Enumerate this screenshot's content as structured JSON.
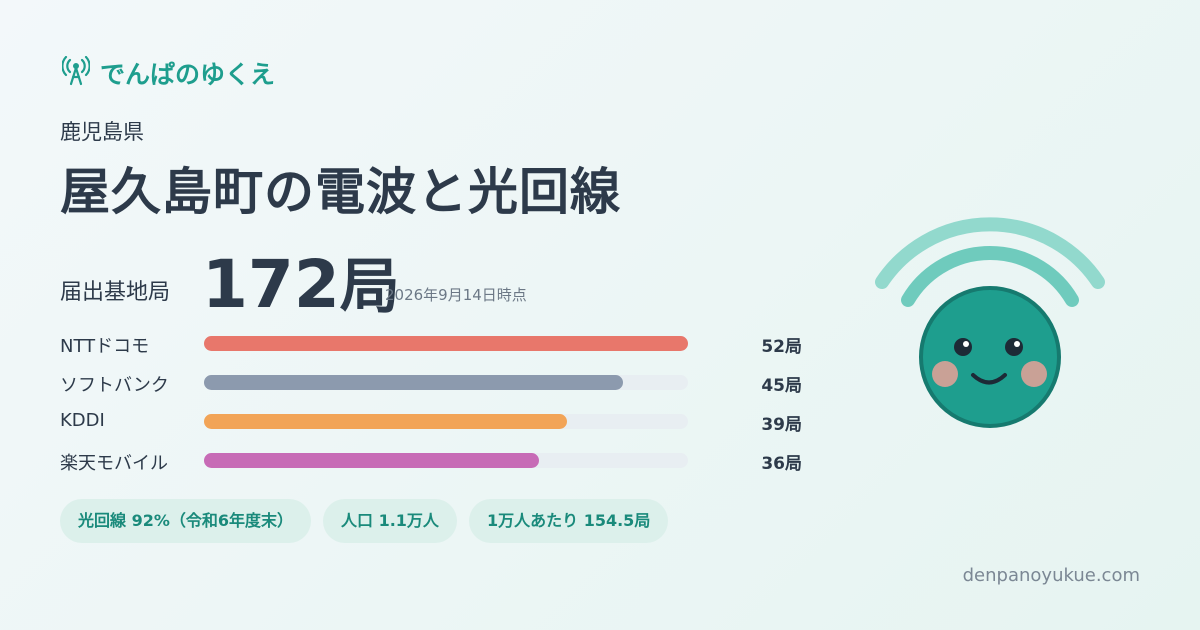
{
  "brand": "でんぱのゆくえ",
  "prefecture": "鹿児島県",
  "title": "屋久島町の電波と光回線",
  "stations": {
    "label": "届出基地局",
    "value": 172,
    "unit": "局",
    "as_of": "2026年9月14日時点"
  },
  "carriers": [
    {
      "name": "NTTドコモ",
      "value": 52,
      "value_label": "52局",
      "color": "#e8776b"
    },
    {
      "name": "ソフトバンク",
      "value": 45,
      "value_label": "45局",
      "color": "#8c9aae"
    },
    {
      "name": "KDDI",
      "value": 39,
      "value_label": "39局",
      "color": "#f2a457"
    },
    {
      "name": "楽天モバイル",
      "value": 36,
      "value_label": "36局",
      "color": "#c76bb6"
    }
  ],
  "badges": [
    "光回線 92%（令和6年度末）",
    "人口 1.1万人",
    "1万人あたり 154.5局"
  ],
  "footer": "denpanoyukue.com"
}
